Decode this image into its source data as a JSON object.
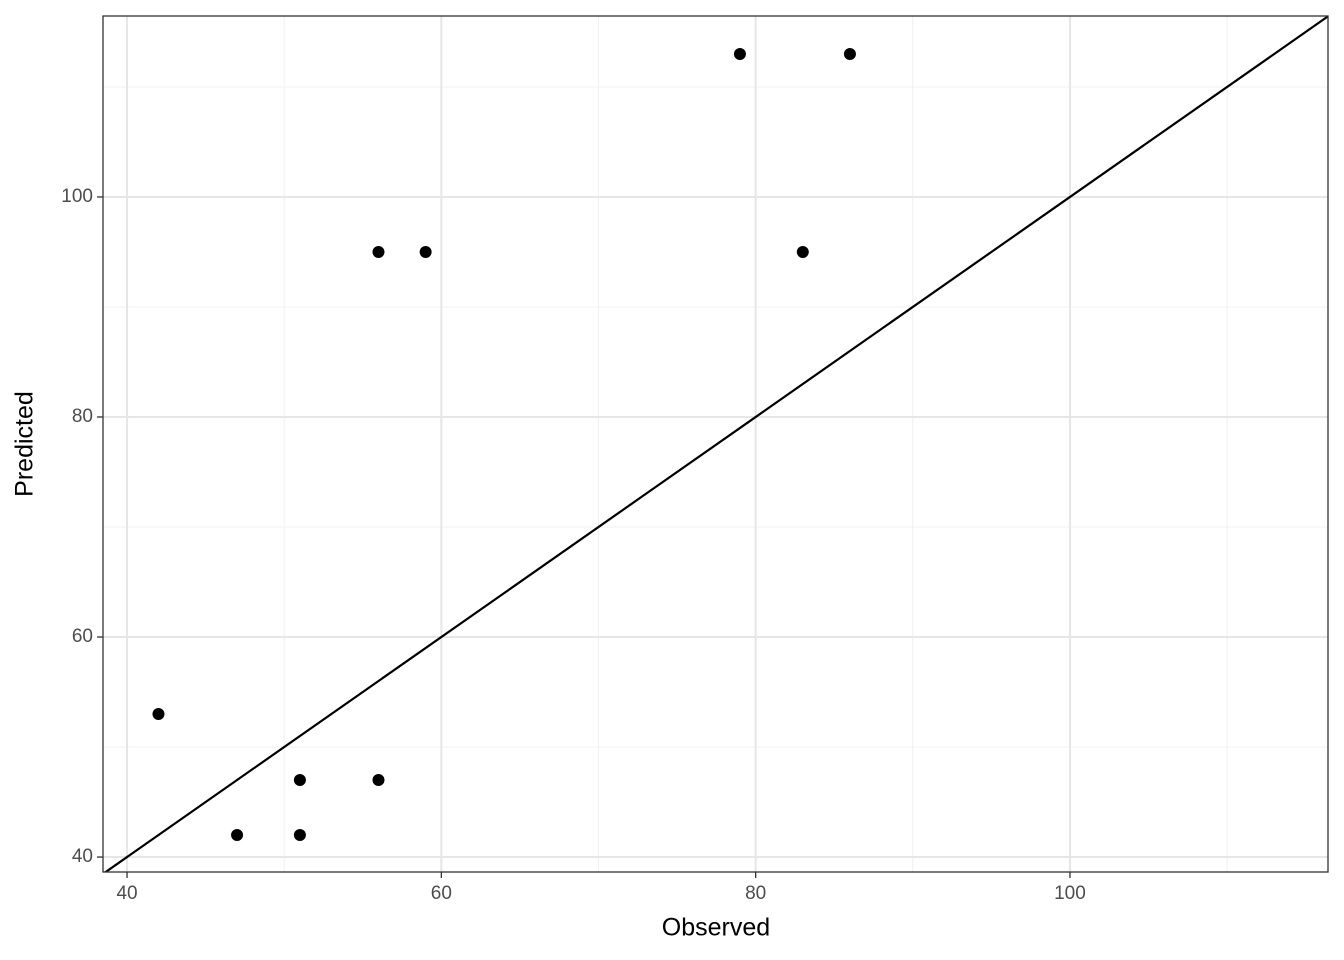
{
  "chart_data": {
    "type": "scatter",
    "x_label": "Observed",
    "y_label": "Predicted",
    "series": [
      {
        "color": "#000000",
        "x": [
          42,
          47,
          51,
          51,
          56,
          56,
          59,
          79,
          86,
          83
        ],
        "values": [
          53,
          42,
          47,
          42,
          47,
          95,
          95,
          113,
          113,
          95
        ]
      }
    ],
    "xlim": [
      38.47,
      116.42
    ],
    "ylim": [
      38.64,
      116.45
    ],
    "xticks": [
      40,
      60,
      80,
      100
    ],
    "yticks": [
      40,
      60,
      80,
      100
    ],
    "xminor": [
      50,
      70,
      90,
      110
    ],
    "yminor": [
      50,
      70,
      90,
      110
    ],
    "grid": true,
    "reference_line": {
      "slope": 1,
      "intercept": 0,
      "color": "#000000"
    }
  }
}
